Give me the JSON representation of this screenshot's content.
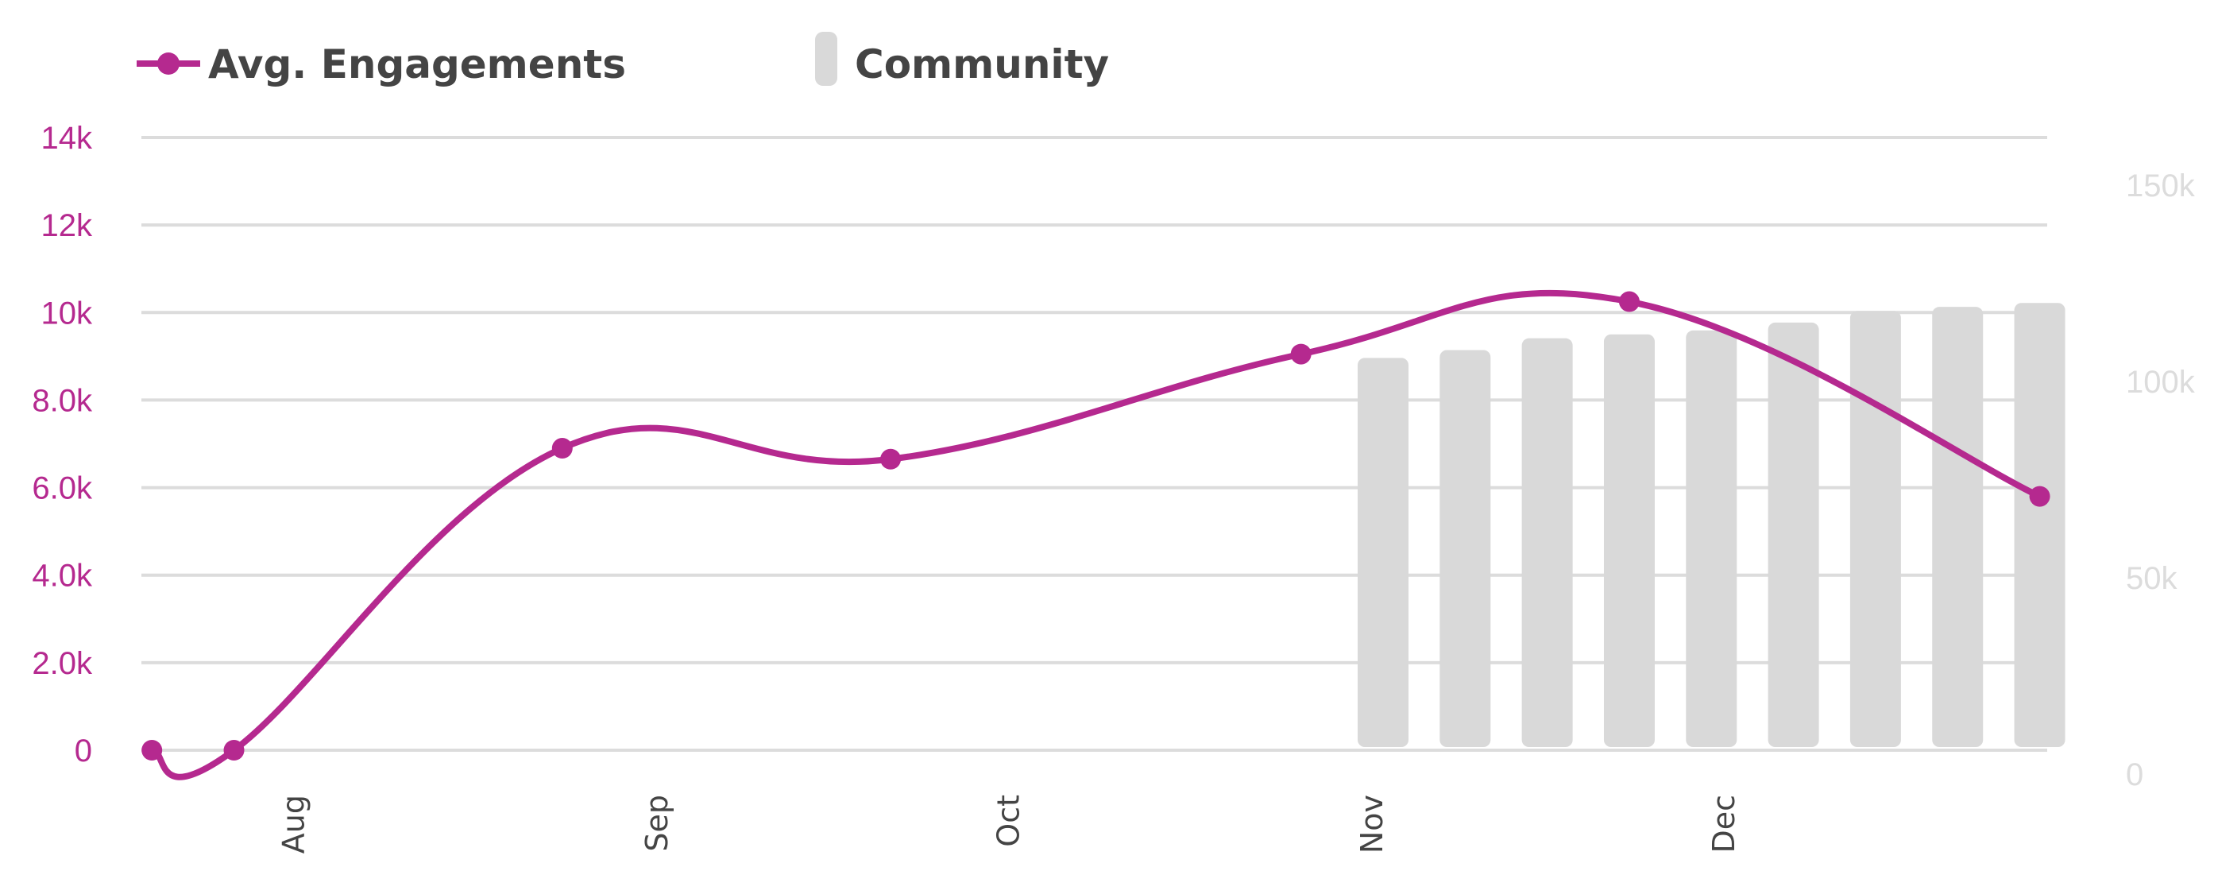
{
  "chart_data": {
    "type": "line+bar",
    "title": "",
    "colors": {
      "line": "#b5298f",
      "bars": "#d9d9d9",
      "grid": "#dcdcdc",
      "right_axis_text": "#dcdcdc",
      "x_axis_text": "#444444"
    },
    "legend": {
      "placement": "top-left",
      "entries": [
        "Avg. Engagements",
        "Community"
      ]
    },
    "grid": true,
    "x_axis": {
      "type": "date",
      "ticks": [
        {
          "date": "2023-08-01",
          "label": "Aug"
        },
        {
          "date": "2023-09-01",
          "label": "Sep"
        },
        {
          "date": "2023-10-01",
          "label": "Oct"
        },
        {
          "date": "2023-11-01",
          "label": "Nov"
        },
        {
          "date": "2023-12-01",
          "label": "Dec"
        }
      ]
    },
    "y_left": {
      "ylim": [
        0,
        14000
      ],
      "ticks": [
        {
          "value": 0,
          "label": "0"
        },
        {
          "value": 2000,
          "label": "2.0k"
        },
        {
          "value": 4000,
          "label": "4.0k"
        },
        {
          "value": 6000,
          "label": "6.0k"
        },
        {
          "value": 8000,
          "label": "8.0k"
        },
        {
          "value": 10000,
          "label": "10k"
        },
        {
          "value": 12000,
          "label": "12k"
        },
        {
          "value": 14000,
          "label": "14k"
        }
      ]
    },
    "y_right": {
      "ylim": [
        0,
        150000
      ],
      "ticks": [
        {
          "value": 0,
          "label": "0"
        },
        {
          "value": 50000,
          "label": "50k"
        },
        {
          "value": 100000,
          "label": "100k"
        },
        {
          "value": 150000,
          "label": "150k"
        }
      ]
    },
    "series": [
      {
        "name": "Avg. Engagements",
        "type": "line",
        "axis": "left",
        "x": [
          "2023-07-20",
          "2023-07-27",
          "2023-08-24",
          "2023-09-21",
          "2023-10-26",
          "2023-11-23",
          "2023-12-28"
        ],
        "values": [
          0,
          0,
          6900,
          6650,
          9050,
          10250,
          5800
        ]
      },
      {
        "name": "Community",
        "type": "bar",
        "axis": "right",
        "x": [
          "2023-11-02",
          "2023-11-09",
          "2023-11-16",
          "2023-11-23",
          "2023-11-30",
          "2023-12-07",
          "2023-12-14",
          "2023-12-21",
          "2023-12-28"
        ],
        "values": [
          106000,
          108000,
          111000,
          112000,
          113000,
          115000,
          118000,
          119000,
          120000
        ]
      }
    ]
  }
}
